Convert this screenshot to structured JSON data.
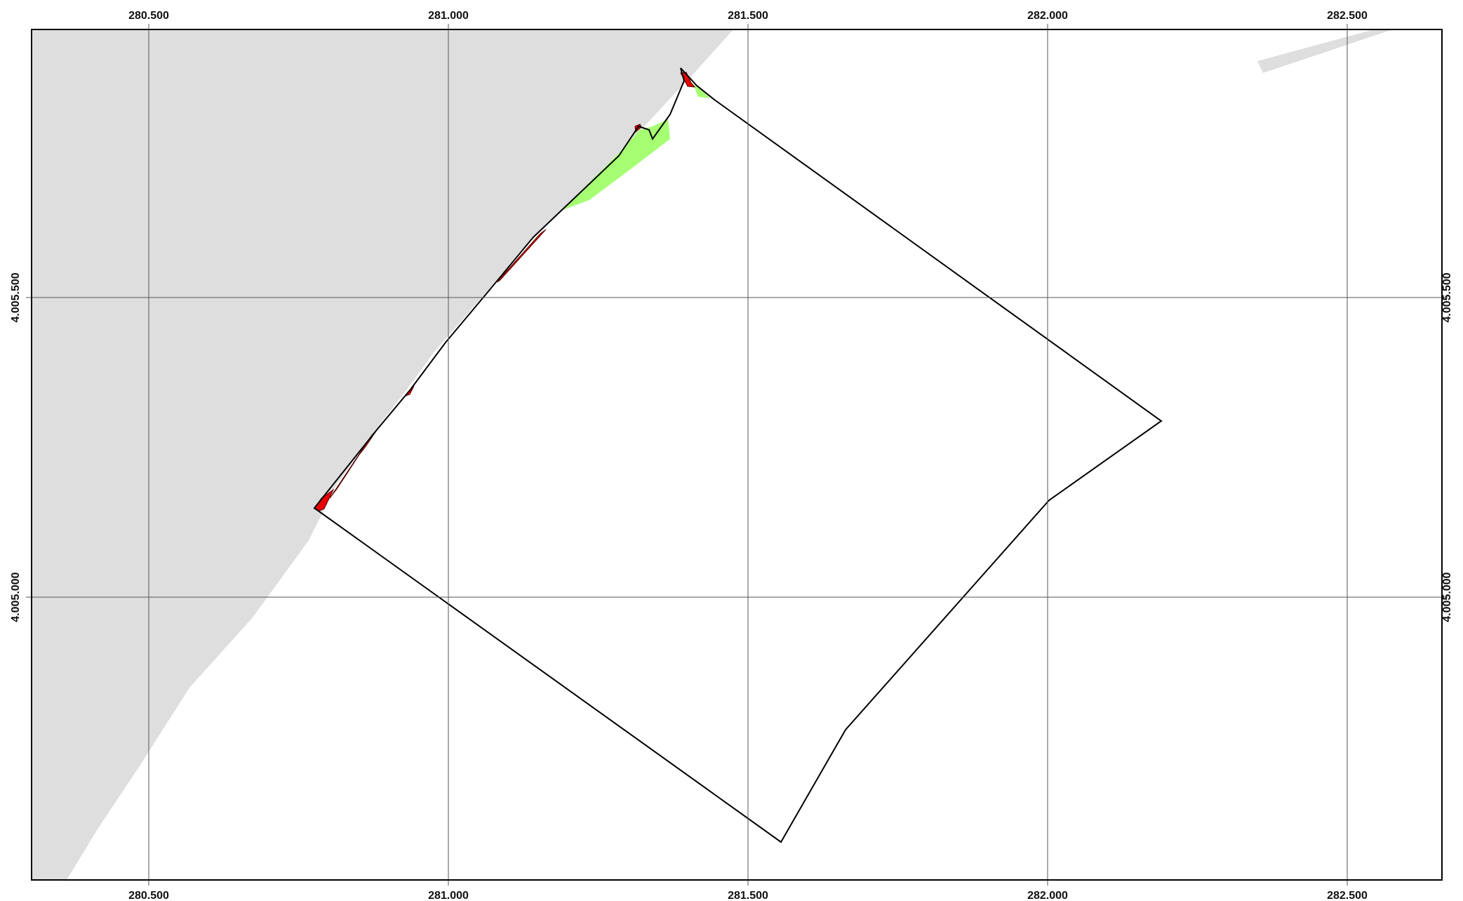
{
  "map": {
    "crs_hint": "projected metres",
    "colors": {
      "land": "#dedede",
      "boundary": "#000000",
      "gain": "#a6ff73",
      "loss": "#e60000",
      "grid": "#555555",
      "frame": "#000000"
    },
    "grid": {
      "x_ticks": [
        {
          "value": 280500,
          "label": "280.500"
        },
        {
          "value": 281000,
          "label": "281.000"
        },
        {
          "value": 281500,
          "label": "281.500"
        },
        {
          "value": 282000,
          "label": "282.000"
        },
        {
          "value": 282500,
          "label": "282.500"
        }
      ],
      "y_ticks": [
        {
          "value": 4005500,
          "label": "4.005.500"
        },
        {
          "value": 4005000,
          "label": "4.005.000"
        }
      ]
    }
  }
}
